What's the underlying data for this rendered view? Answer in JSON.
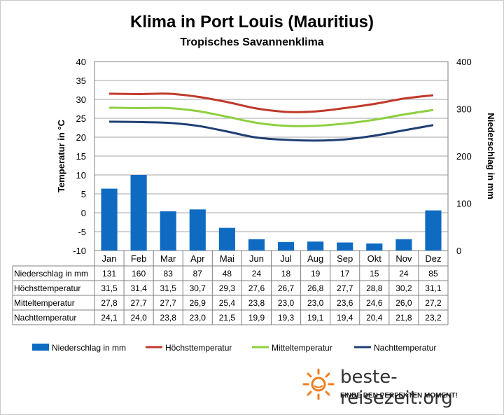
{
  "header": {
    "title": "Klima in Port Louis (Mauritius)",
    "subtitle": "Tropisches Savannenklima"
  },
  "chart_data": {
    "type": "bar",
    "categories": [
      "Jan",
      "Feb",
      "Mar",
      "Apr",
      "Mai",
      "Jun",
      "Jul",
      "Aug",
      "Sep",
      "Okt",
      "Nov",
      "Dez"
    ],
    "y_left": {
      "label": "Temperatur in °C",
      "ylim": [
        -10,
        40
      ],
      "ticks": [
        40,
        35,
        30,
        25,
        20,
        15,
        10,
        5,
        0,
        -5,
        -10
      ]
    },
    "y_right": {
      "label": "Niederschlag in mm",
      "ylim": [
        0,
        400
      ],
      "ticks": [
        400,
        300,
        200,
        100,
        0
      ]
    },
    "bars": {
      "name": "Niederschlag in mm",
      "axis": "right",
      "color": "#0e6bc1",
      "values": [
        131,
        160,
        83,
        87,
        48,
        24,
        18,
        19,
        17,
        15,
        24,
        85
      ]
    },
    "lines": [
      {
        "name": "Höchsttemperatur",
        "color": "#c0392b",
        "values": [
          "31,5",
          "31,4",
          "31,5",
          "30,7",
          "29,3",
          "27,6",
          "26,7",
          "26,8",
          "27,7",
          "28,8",
          "30,2",
          "31,1"
        ]
      },
      {
        "name": "Mitteltemperatur",
        "color": "#8dcf3f",
        "values": [
          "27,8",
          "27,7",
          "27,7",
          "26,9",
          "25,4",
          "23,8",
          "23,0",
          "23,0",
          "23,6",
          "24,6",
          "26,0",
          "27,2"
        ]
      },
      {
        "name": "Nachttemperatur",
        "color": "#1f3f73",
        "values": [
          "24,1",
          "24,0",
          "23,8",
          "23,0",
          "21,5",
          "19,9",
          "19,3",
          "19,1",
          "19,4",
          "20,4",
          "21,8",
          "23,2"
        ]
      }
    ],
    "table_rows": [
      {
        "label": "Niederschlag in mm",
        "values": [
          "131",
          "160",
          "83",
          "87",
          "48",
          "24",
          "18",
          "19",
          "17",
          "15",
          "24",
          "85"
        ]
      },
      {
        "label": "Höchsttemperatur",
        "values": [
          "31,5",
          "31,4",
          "31,5",
          "30,7",
          "29,3",
          "27,6",
          "26,7",
          "26,8",
          "27,7",
          "28,8",
          "30,2",
          "31,1"
        ]
      },
      {
        "label": "Mitteltemperatur",
        "values": [
          "27,8",
          "27,7",
          "27,7",
          "26,9",
          "25,4",
          "23,8",
          "23,0",
          "23,0",
          "23,6",
          "24,6",
          "26,0",
          "27,2"
        ]
      },
      {
        "label": "Nachttemperatur",
        "values": [
          "24,1",
          "24,0",
          "23,8",
          "23,0",
          "21,5",
          "19,9",
          "19,3",
          "19,1",
          "19,4",
          "20,4",
          "21,8",
          "23,2"
        ]
      }
    ],
    "legend": [
      {
        "name": "Niederschlag in mm",
        "kind": "bar",
        "color": "#0e6bc1"
      },
      {
        "name": "Höchsttemperatur",
        "kind": "line",
        "color": "#c0392b"
      },
      {
        "name": "Mitteltemperatur",
        "kind": "line",
        "color": "#8dcf3f"
      },
      {
        "name": "Nachttemperatur",
        "kind": "line",
        "color": "#1f3f73"
      }
    ],
    "legend_position": "bottom",
    "grid": true
  },
  "logo": {
    "name": "beste-reisezeit.org",
    "tagline": "FINDE DEN PERFEKTEN MOMENT!",
    "icon": "sun-icon"
  }
}
